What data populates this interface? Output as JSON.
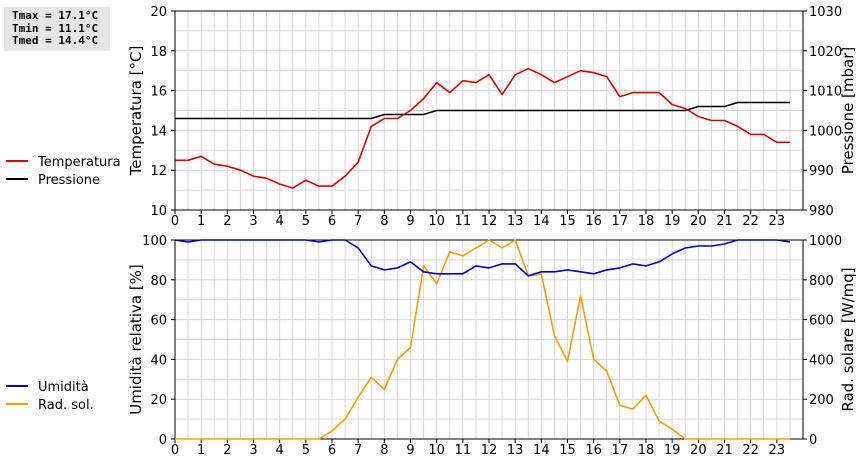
{
  "stats": {
    "tmax": "Tmax = 17.1°C",
    "tmin": "Tmin = 11.1°C",
    "tmed": "Tmed = 14.4°C"
  },
  "colors": {
    "temperature": "#dd0000",
    "pressure": "#000000",
    "humidity": "#0000cc",
    "radiation": "#f5a000",
    "grid": "#d8d8d8"
  },
  "chart_data": [
    {
      "type": "line",
      "title": "",
      "ylabel": "Temperatura [°C]",
      "y2label": "Pressione [mbar]",
      "ylim": [
        10,
        20
      ],
      "y2lim": [
        980,
        1030
      ],
      "yticks": [
        10,
        12,
        14,
        16,
        18,
        20
      ],
      "y2ticks": [
        980,
        990,
        1000,
        1010,
        1020,
        1030
      ],
      "xticks": [
        "0",
        "1",
        "2",
        "3",
        "4",
        "5",
        "6",
        "7",
        "8",
        "9",
        "10",
        "11",
        "12",
        "13",
        "14",
        "15",
        "16",
        "17",
        "18",
        "19",
        "20",
        "21",
        "22",
        "23"
      ],
      "xlim": [
        0,
        24
      ],
      "grid": true,
      "legend_position": "left",
      "series": [
        {
          "name": "Temperatura",
          "axis": "left",
          "color": "#dd0000",
          "x": [
            0,
            0.5,
            1,
            1.5,
            2,
            2.5,
            3,
            3.5,
            4,
            4.5,
            5,
            5.5,
            6,
            6.5,
            7,
            7.5,
            8,
            8.5,
            9,
            9.5,
            10,
            10.5,
            11,
            11.5,
            12,
            12.5,
            13,
            13.5,
            14,
            14.5,
            15,
            15.5,
            16,
            16.5,
            17,
            17.5,
            18,
            18.5,
            19,
            19.5,
            20,
            20.5,
            21,
            21.5,
            22,
            22.5,
            23,
            23.5
          ],
          "y": [
            12.5,
            12.5,
            12.7,
            12.3,
            12.2,
            12.0,
            11.7,
            11.6,
            11.3,
            11.1,
            11.5,
            11.2,
            11.2,
            11.7,
            12.4,
            14.2,
            14.6,
            14.6,
            15.0,
            15.6,
            16.4,
            15.9,
            16.5,
            16.4,
            16.8,
            15.8,
            16.8,
            17.1,
            16.8,
            16.4,
            16.7,
            17.0,
            16.9,
            16.7,
            15.7,
            15.9,
            15.9,
            15.9,
            15.3,
            15.1,
            14.7,
            14.5,
            14.5,
            14.2,
            13.8,
            13.8,
            13.4,
            13.4
          ]
        },
        {
          "name": "Pressione",
          "axis": "right",
          "color": "#000000",
          "x": [
            0,
            0.5,
            1,
            1.5,
            2,
            2.5,
            3,
            3.5,
            4,
            4.5,
            5,
            5.5,
            6,
            6.5,
            7,
            7.5,
            8,
            8.5,
            9,
            9.5,
            10,
            10.5,
            11,
            11.5,
            12,
            12.5,
            13,
            13.5,
            14,
            14.5,
            15,
            15.5,
            16,
            16.5,
            17,
            17.5,
            18,
            18.5,
            19,
            19.5,
            20,
            20.5,
            21,
            21.5,
            22,
            22.5,
            23,
            23.5
          ],
          "y": [
            1003,
            1003,
            1003,
            1003,
            1003,
            1003,
            1003,
            1003,
            1003,
            1003,
            1003,
            1003,
            1003,
            1003,
            1003,
            1003,
            1004,
            1004,
            1004,
            1004,
            1005,
            1005,
            1005,
            1005,
            1005,
            1005,
            1005,
            1005,
            1005,
            1005,
            1005,
            1005,
            1005,
            1005,
            1005,
            1005,
            1005,
            1005,
            1005,
            1005,
            1006,
            1006,
            1006,
            1007,
            1007,
            1007,
            1007,
            1007
          ]
        }
      ]
    },
    {
      "type": "line",
      "title": "",
      "ylabel": "Umidità relativa [%]",
      "y2label": "Rad. solare [W/mq]",
      "ylim": [
        0,
        100
      ],
      "y2lim": [
        0,
        1000
      ],
      "yticks": [
        0,
        20,
        40,
        60,
        80,
        100
      ],
      "y2ticks": [
        0,
        200,
        400,
        600,
        800,
        1000
      ],
      "xticks": [
        "0",
        "1",
        "2",
        "3",
        "4",
        "5",
        "6",
        "7",
        "8",
        "9",
        "10",
        "11",
        "12",
        "13",
        "14",
        "15",
        "16",
        "17",
        "18",
        "19",
        "20",
        "21",
        "22",
        "23"
      ],
      "xlim": [
        0,
        24
      ],
      "grid": true,
      "legend_position": "left",
      "series": [
        {
          "name": "Umidità",
          "axis": "left",
          "color": "#0000cc",
          "x": [
            0,
            0.5,
            1,
            1.5,
            2,
            2.5,
            3,
            3.5,
            4,
            4.5,
            5,
            5.5,
            6,
            6.5,
            7,
            7.5,
            8,
            8.5,
            9,
            9.5,
            10,
            10.5,
            11,
            11.5,
            12,
            12.5,
            13,
            13.5,
            14,
            14.5,
            15,
            15.5,
            16,
            16.5,
            17,
            17.5,
            18,
            18.5,
            19,
            19.5,
            20,
            20.5,
            21,
            21.5,
            22,
            22.5,
            23,
            23.5
          ],
          "y": [
            100,
            99,
            100,
            100,
            100,
            100,
            100,
            100,
            100,
            100,
            100,
            99,
            100,
            100,
            96,
            87,
            85,
            86,
            89,
            84,
            83,
            83,
            83,
            87,
            86,
            88,
            88,
            82,
            84,
            84,
            85,
            84,
            83,
            85,
            86,
            88,
            87,
            89,
            93,
            96,
            97,
            97,
            98,
            100,
            100,
            100,
            100,
            99
          ]
        },
        {
          "name": "Rad. sol.",
          "axis": "right",
          "color": "#f5a000",
          "x": [
            0,
            0.5,
            1,
            1.5,
            2,
            2.5,
            3,
            3.5,
            4,
            4.5,
            5,
            5.5,
            6,
            6.5,
            7,
            7.5,
            8,
            8.5,
            9,
            9.5,
            10,
            10.5,
            11,
            11.5,
            12,
            12.5,
            13,
            13.5,
            14,
            14.5,
            15,
            15.5,
            16,
            16.5,
            17,
            17.5,
            18,
            18.5,
            19,
            19.5,
            20,
            20.5,
            21,
            21.5,
            22,
            22.5,
            23,
            23.5
          ],
          "y": [
            0,
            0,
            0,
            0,
            0,
            0,
            0,
            0,
            0,
            0,
            0,
            0,
            40,
            100,
            210,
            310,
            250,
            400,
            460,
            870,
            780,
            940,
            920,
            960,
            1040,
            960,
            1040,
            820,
            830,
            520,
            390,
            720,
            400,
            340,
            170,
            150,
            220,
            90,
            50,
            0,
            0,
            0,
            0,
            0,
            0,
            0,
            0,
            0
          ]
        }
      ]
    }
  ]
}
